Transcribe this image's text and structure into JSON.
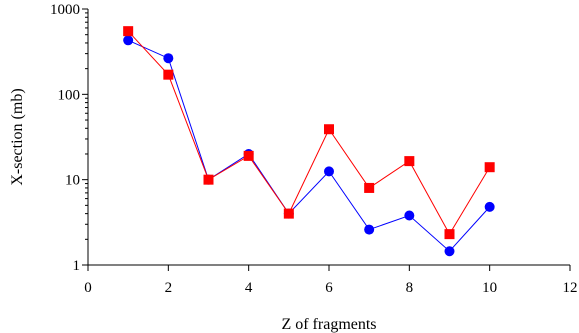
{
  "chart_data": {
    "type": "line",
    "title": "",
    "xlabel": "Z of fragments",
    "ylabel": "X-section (mb)",
    "xlim": [
      0,
      12
    ],
    "ylim": [
      1,
      1000
    ],
    "yscale": "log",
    "grid": false,
    "legend": "none",
    "x_ticks": [
      0,
      2,
      4,
      6,
      8,
      10,
      12
    ],
    "y_ticks": [
      1,
      10,
      100,
      1000
    ],
    "series": [
      {
        "color": "#0000ff",
        "marker": "circle",
        "x": [
          1,
          2,
          3,
          4,
          5,
          6,
          7,
          8,
          9,
          10
        ],
        "y": [
          430,
          265,
          10,
          20,
          4,
          12.5,
          2.6,
          3.8,
          1.45,
          4.8
        ]
      },
      {
        "color": "#ff0000",
        "marker": "square",
        "x": [
          1,
          2,
          3,
          4,
          5,
          6,
          7,
          8,
          9,
          10
        ],
        "y": [
          550,
          170,
          10,
          19,
          4,
          39,
          8,
          16.5,
          2.3,
          14
        ]
      }
    ]
  }
}
